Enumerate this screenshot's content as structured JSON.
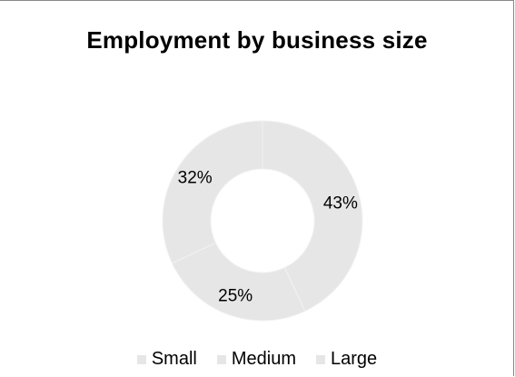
{
  "chart_data": {
    "type": "pie",
    "donut": true,
    "title": "Employment by business size",
    "categories": [
      "Small",
      "Medium",
      "Large"
    ],
    "values": [
      43,
      25,
      32
    ],
    "labels": [
      "43%",
      "25%",
      "32%"
    ],
    "colors": [
      "#e6e6e6",
      "#e6e6e6",
      "#e6e6e6"
    ],
    "legend": "bottom"
  }
}
